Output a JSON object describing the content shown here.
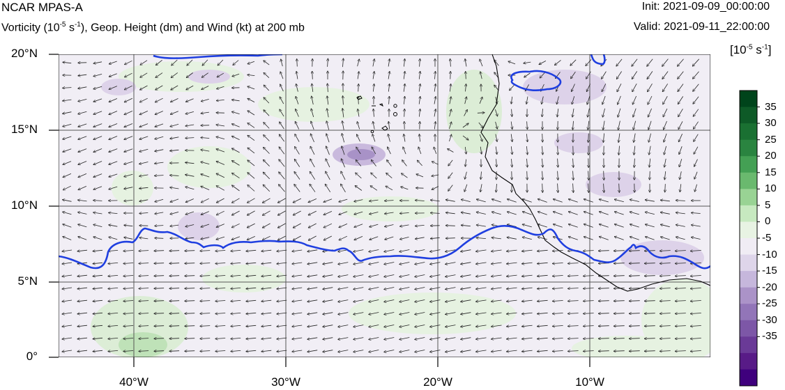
{
  "header": {
    "title": "NCAR MPAS-A",
    "subtitle_pre": "Vorticity (10",
    "subtitle_exp": "-5",
    "subtitle_post": " s",
    "subtitle_exp2": "-1",
    "subtitle_rest": "), Geop. Height (dm) and Wind (kt) at 200 mb",
    "init": "Init: 2021-09-09_00:00:00",
    "valid": "Valid: 2021-09-11_22:00:00"
  },
  "map": {
    "lat_labels": [
      "20°N",
      "15°N",
      "10°N",
      "5°N",
      "0°"
    ],
    "lon_labels": [
      "40°W",
      "30°W",
      "20°W",
      "10°W"
    ],
    "lat_range": [
      0,
      20
    ],
    "lon_range": [
      -45,
      -2
    ],
    "height_contour_color": "#1f3fe0",
    "coast_color": "#000000",
    "grid_color": "#555555"
  },
  "colorbar": {
    "units_pre": "[10",
    "units_exp": "-5",
    "units_post": " s",
    "units_exp2": "-1",
    "units_close": "]",
    "labels": [
      "35",
      "30",
      "25",
      "20",
      "15",
      "10",
      "5",
      "0",
      "-5",
      "-10",
      "-15",
      "-20",
      "-25",
      "-30",
      "-35"
    ],
    "colors": [
      "#00441b",
      "#0e5a27",
      "#1a7032",
      "#2a8440",
      "#44a054",
      "#6ab96e",
      "#99d394",
      "#c7e9c0",
      "#e8f3e3",
      "#f0ecf4",
      "#ded5ea",
      "#c6b7dc",
      "#ab93c8",
      "#9275b8",
      "#7d57a7",
      "#6a3a97",
      "#581b87",
      "#3f007d"
    ]
  }
}
